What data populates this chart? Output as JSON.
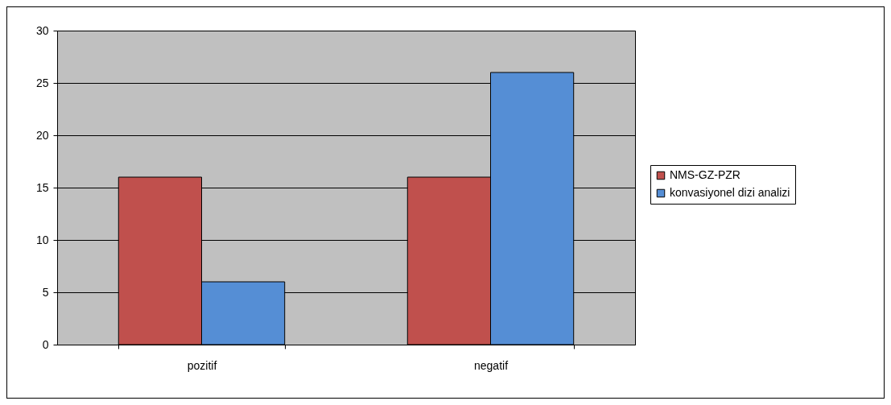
{
  "chart_data": {
    "type": "bar",
    "categories": [
      "pozitif",
      "negatif"
    ],
    "series": [
      {
        "name": "NMS-GZ-PZR",
        "color": "#c0504d",
        "values": [
          16,
          16
        ]
      },
      {
        "name": "konvasiyonel dizi analizi",
        "color": "#558ed5",
        "values": [
          6,
          26
        ]
      }
    ],
    "ylim": [
      0,
      30
    ],
    "yticks": [
      0,
      5,
      10,
      15,
      20,
      25,
      30
    ],
    "grid": "y",
    "legend": "right"
  }
}
